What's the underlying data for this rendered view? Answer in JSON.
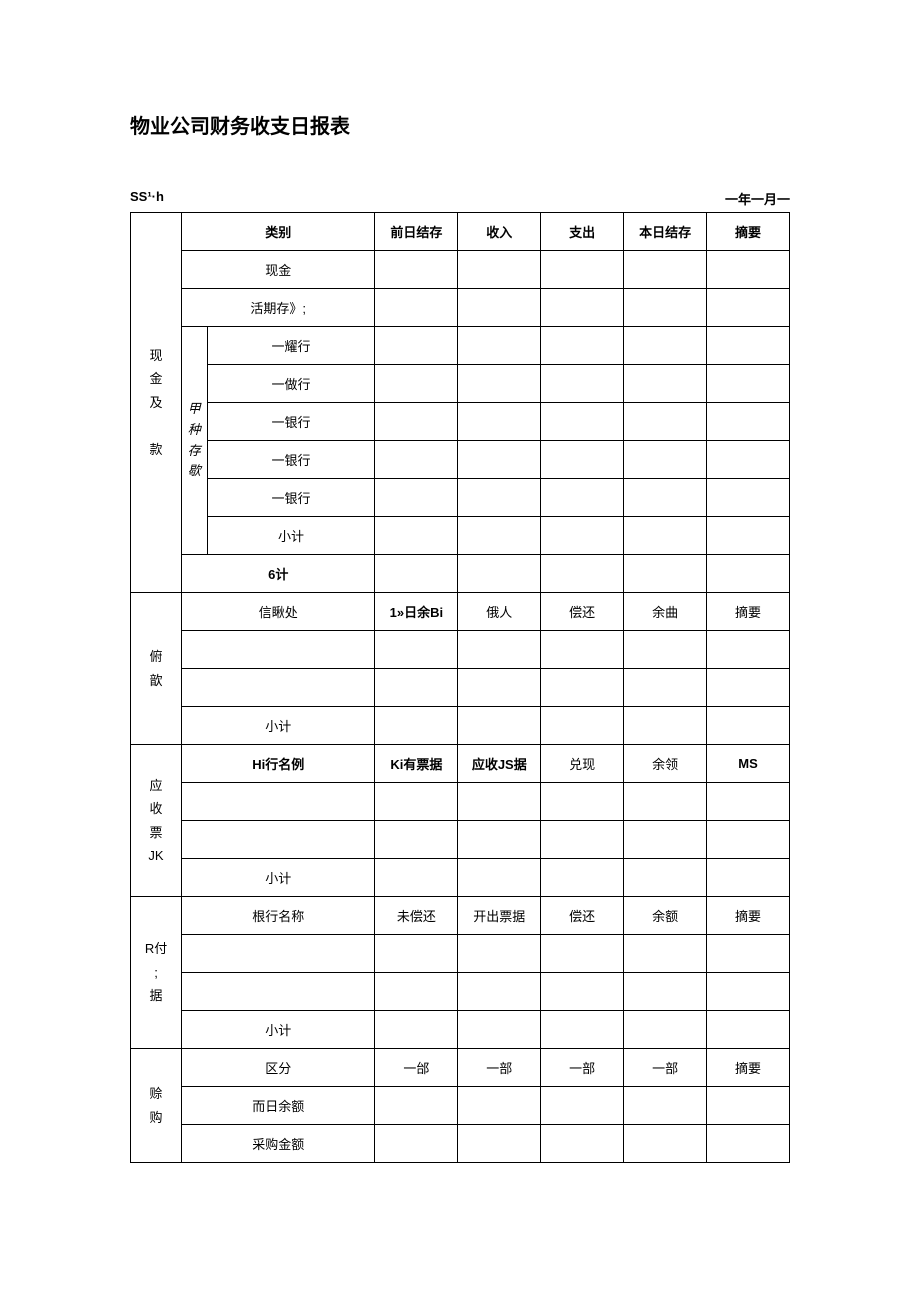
{
  "title": "物业公司财务收支日报表",
  "meta_left": "SS¹·h",
  "meta_right": "一年一月一",
  "section1": {
    "label": "现\n金\n及\n\n款",
    "sub_label": "甲\n种\n存\n歇",
    "header": {
      "c0": "类别",
      "c1": "前日结存",
      "c2": "收入",
      "c3": "支出",
      "c4": "本日结存",
      "c5": "摘要"
    },
    "rows": [
      "现金",
      "活期存》;",
      "一耀行",
      "一做行",
      "一银行",
      "一银行",
      "一银行",
      "小计"
    ],
    "total_label": "6计"
  },
  "section2": {
    "label": "俯\n歆",
    "header": {
      "c0": "信瞅处",
      "c1": "1»日余Bi",
      "c2": "俄人",
      "c3": "偿还",
      "c4": "余曲",
      "c5": "摘要"
    },
    "rows": [
      "",
      "",
      "小计"
    ]
  },
  "section3": {
    "label": "应\n收\n票\nJK",
    "header": {
      "c0": "Hi行名例",
      "c1": "Ki有票据",
      "c2": "应收JS据",
      "c3": "兑现",
      "c4": "余领",
      "c5": "MS"
    },
    "rows": [
      "",
      "",
      "小计"
    ]
  },
  "section4": {
    "label": "R付\n;\n据",
    "header": {
      "c0": "根行名称",
      "c1": "未偿还",
      "c2": "开出票据",
      "c3": "偿还",
      "c4": "余额",
      "c5": "摘要"
    },
    "rows": [
      "",
      "",
      "小计"
    ]
  },
  "section5": {
    "label": "赊\n购",
    "header": {
      "c0": "区分",
      "c1": "一邰",
      "c2": "一部",
      "c3": "一部",
      "c4": "一部",
      "c5": "摘要"
    },
    "rows": [
      "而日余额",
      "采购金额"
    ]
  }
}
